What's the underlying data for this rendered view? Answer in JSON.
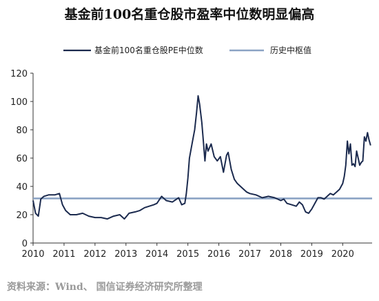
{
  "title": "基金前100名重仓股市盈率中位数明显偏高",
  "source": "资料来源：Wind、 国信证券经济研究所整理",
  "chart_data": {
    "type": "line",
    "title": "基金前100名重仓股市盈率中位数明显偏高",
    "xlabel": "",
    "ylabel": "",
    "xlim": [
      2010,
      2020.95
    ],
    "ylim": [
      0,
      120
    ],
    "x_ticks": [
      "2010",
      "2011",
      "2012",
      "2013",
      "2014",
      "2015",
      "2016",
      "2017",
      "2018",
      "2019",
      "2020"
    ],
    "y_ticks": [
      "0",
      "20",
      "40",
      "60",
      "80",
      "100",
      "120"
    ],
    "grid": false,
    "legend_position": "top",
    "series": [
      {
        "name": "基金前100名重仓股PE中位数",
        "color": "#1b2a4e",
        "x": [
          2010.0,
          2010.08,
          2010.17,
          2010.25,
          2010.35,
          2010.5,
          2010.7,
          2010.85,
          2010.95,
          2011.05,
          2011.2,
          2011.4,
          2011.6,
          2011.8,
          2012.0,
          2012.2,
          2012.4,
          2012.6,
          2012.8,
          2012.95,
          2013.1,
          2013.3,
          2013.45,
          2013.6,
          2013.75,
          2013.9,
          2014.0,
          2014.15,
          2014.3,
          2014.5,
          2014.7,
          2014.8,
          2014.9,
          2014.95,
          2015.0,
          2015.05,
          2015.15,
          2015.22,
          2015.28,
          2015.33,
          2015.38,
          2015.45,
          2015.5,
          2015.55,
          2015.6,
          2015.65,
          2015.75,
          2015.85,
          2015.95,
          2016.05,
          2016.15,
          2016.25,
          2016.3,
          2016.4,
          2016.5,
          2016.6,
          2016.7,
          2016.8,
          2016.9,
          2017.0,
          2017.2,
          2017.4,
          2017.6,
          2017.8,
          2018.0,
          2018.1,
          2018.2,
          2018.35,
          2018.5,
          2018.6,
          2018.7,
          2018.8,
          2018.9,
          2019.0,
          2019.1,
          2019.2,
          2019.3,
          2019.4,
          2019.5,
          2019.6,
          2019.7,
          2019.8,
          2019.9,
          2020.0,
          2020.05,
          2020.1,
          2020.15,
          2020.2,
          2020.25,
          2020.3,
          2020.35,
          2020.4,
          2020.45,
          2020.5,
          2020.55,
          2020.6,
          2020.65,
          2020.7,
          2020.75,
          2020.8,
          2020.85,
          2020.9
        ],
        "values": [
          30,
          21,
          19,
          31,
          33,
          34,
          34,
          35,
          27,
          23,
          20,
          20,
          21,
          19,
          18,
          18,
          17,
          19,
          20,
          17,
          21,
          22,
          23,
          25,
          26,
          27,
          28,
          33,
          30,
          29,
          32,
          27,
          28,
          35,
          46,
          60,
          72,
          80,
          92,
          104,
          98,
          85,
          72,
          58,
          70,
          65,
          70,
          61,
          58,
          61,
          50,
          62,
          64,
          52,
          45,
          42,
          40,
          38,
          36,
          35,
          34,
          32,
          33,
          32,
          30,
          31,
          28,
          27,
          26,
          29,
          27,
          22,
          21,
          24,
          28,
          32,
          32,
          31,
          33,
          35,
          34,
          36,
          38,
          42,
          47,
          55,
          72,
          63,
          70,
          55,
          56,
          54,
          65,
          60,
          55,
          57,
          58,
          75,
          72,
          78,
          73,
          69
        ]
      },
      {
        "name": "历史中枢值",
        "color": "#8ba3c4",
        "x": [
          2010.0,
          2020.95
        ],
        "values": [
          31.5,
          31.5
        ]
      }
    ]
  }
}
